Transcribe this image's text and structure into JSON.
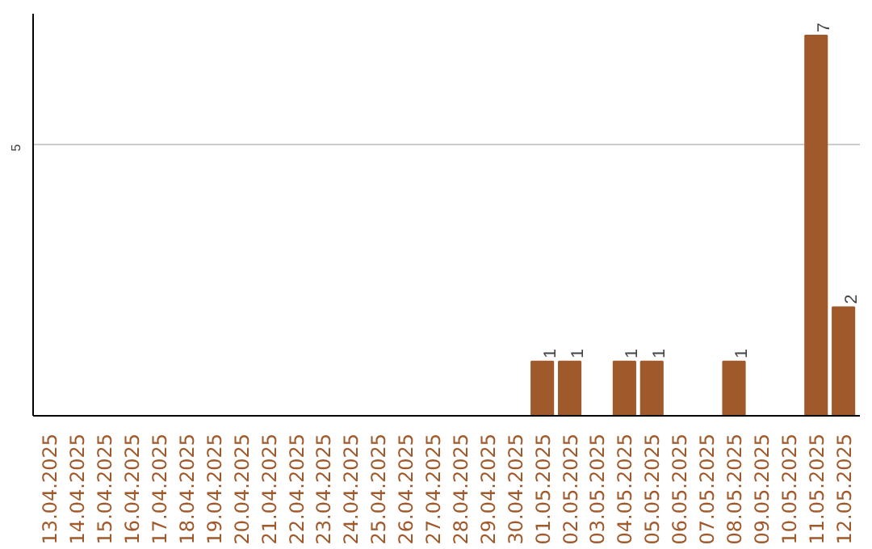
{
  "chart_data": {
    "type": "bar",
    "categories": [
      "13.04.2025",
      "14.04.2025",
      "15.04.2025",
      "16.04.2025",
      "17.04.2025",
      "18.04.2025",
      "19.04.2025",
      "20.04.2025",
      "21.04.2025",
      "22.04.2025",
      "23.04.2025",
      "24.04.2025",
      "25.04.2025",
      "26.04.2025",
      "27.04.2025",
      "28.04.2025",
      "29.04.2025",
      "30.04.2025",
      "01.05.2025",
      "02.05.2025",
      "03.05.2025",
      "04.05.2025",
      "05.05.2025",
      "06.05.2025",
      "07.05.2025",
      "08.05.2025",
      "09.05.2025",
      "10.05.2025",
      "11.05.2025",
      "12.05.2025"
    ],
    "values": [
      null,
      null,
      null,
      null,
      null,
      null,
      null,
      null,
      null,
      null,
      null,
      null,
      null,
      null,
      null,
      null,
      null,
      null,
      1,
      1,
      null,
      1,
      1,
      null,
      null,
      1,
      null,
      null,
      7,
      2
    ],
    "value_labels": [
      null,
      null,
      null,
      null,
      null,
      null,
      null,
      null,
      null,
      null,
      null,
      null,
      null,
      null,
      null,
      null,
      null,
      null,
      "1",
      "1",
      null,
      "1",
      "1",
      null,
      null,
      "1",
      null,
      null,
      "7",
      "2"
    ],
    "ylim": [
      0,
      7.4
    ],
    "color": "#a0592b",
    "yticks": [
      {
        "value": 0,
        "label": null
      },
      5
    ],
    "grid": "y"
  }
}
